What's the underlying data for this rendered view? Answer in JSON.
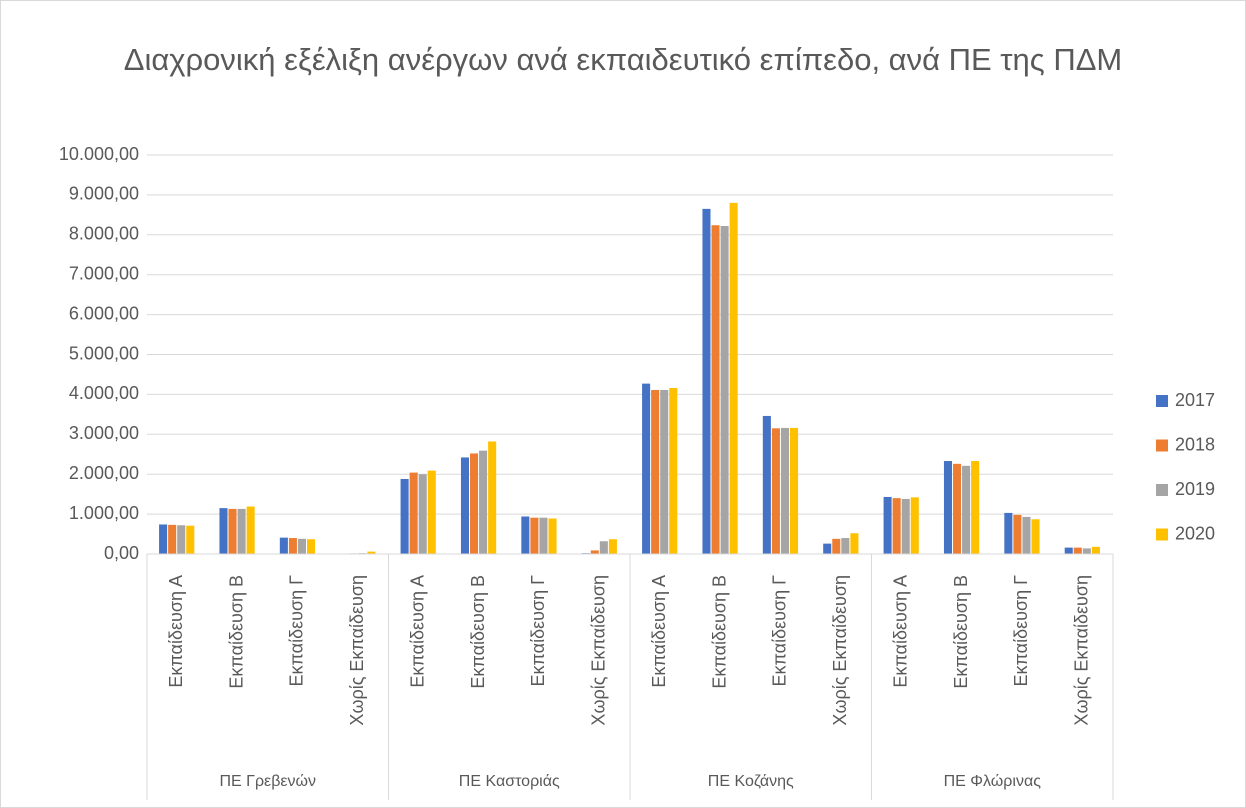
{
  "chart_data": {
    "type": "bar",
    "title": "Διαχρονική εξέλιξη ανέργων ανά εκπαιδευτικό επίπεδο, ανά ΠΕ της ΠΔΜ",
    "groups": [
      "ΠΕ Γρεβενών",
      "ΠΕ Καστοριάς",
      "ΠΕ Κοζάνης",
      "ΠΕ Φλώρινας"
    ],
    "categories": [
      "Εκπαίδευση Α",
      "Εκπαίδευση Β",
      "Εκπαίδευση Γ",
      "Χωρίς Εκπαίδευση",
      "Εκπαίδευση Α",
      "Εκπαίδευση Β",
      "Εκπαίδευση Γ",
      "Χωρίς Εκπαίδευση",
      "Εκπαίδευση Α",
      "Εκπαίδευση Β",
      "Εκπαίδευση Γ",
      "Χωρίς Εκπαίδευση",
      "Εκπαίδευση Α",
      "Εκπαίδευση Β",
      "Εκπαίδευση Γ",
      "Χωρίς Εκπαίδευση"
    ],
    "series": [
      {
        "name": "2017",
        "color": "#4472c4",
        "values": [
          740,
          1150,
          410,
          10,
          1880,
          2420,
          940,
          20,
          4270,
          8650,
          3460,
          260,
          1430,
          2330,
          1030,
          160
        ]
      },
      {
        "name": "2018",
        "color": "#ed7d31",
        "values": [
          730,
          1130,
          400,
          15,
          2040,
          2520,
          910,
          90,
          4110,
          8240,
          3150,
          380,
          1400,
          2260,
          980,
          160
        ]
      },
      {
        "name": "2019",
        "color": "#a5a5a5",
        "values": [
          720,
          1130,
          380,
          20,
          2000,
          2590,
          910,
          320,
          4110,
          8220,
          3160,
          400,
          1380,
          2210,
          930,
          140
        ]
      },
      {
        "name": "2020",
        "color": "#ffc000",
        "values": [
          710,
          1190,
          370,
          60,
          2090,
          2820,
          890,
          370,
          4160,
          8800,
          3160,
          520,
          1420,
          2330,
          870,
          180
        ]
      }
    ],
    "ylim": [
      0,
      10000
    ],
    "yticks": [
      {
        "value": 0,
        "label": "0,00"
      },
      {
        "value": 1000,
        "label": "1.000,00"
      },
      {
        "value": 2000,
        "label": "2.000,00"
      },
      {
        "value": 3000,
        "label": "3.000,00"
      },
      {
        "value": 4000,
        "label": "4.000,00"
      },
      {
        "value": 5000,
        "label": "5.000,00"
      },
      {
        "value": 6000,
        "label": "6.000,00"
      },
      {
        "value": 7000,
        "label": "7.000,00"
      },
      {
        "value": 8000,
        "label": "8.000,00"
      },
      {
        "value": 9000,
        "label": "9.000,00"
      },
      {
        "value": 10000,
        "label": "10.000,00"
      }
    ],
    "grid": true,
    "legend": "right"
  }
}
